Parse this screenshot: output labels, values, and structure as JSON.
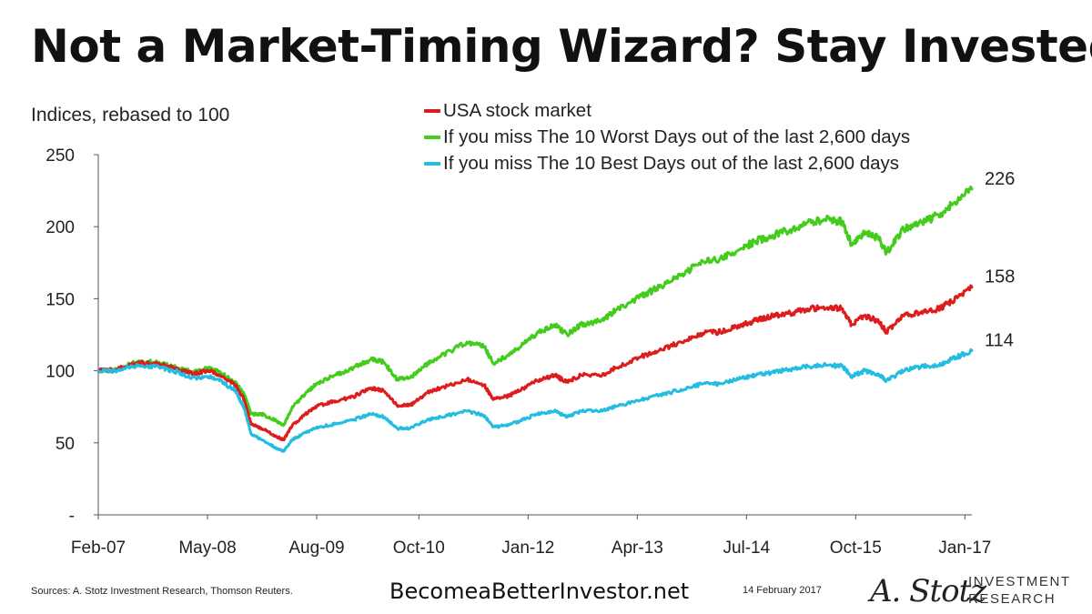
{
  "title": "Not a Market-Timing Wizard? Stay Invested",
  "footer": {
    "sources": "Sources: A. Stotz Investment Research, Thomson Reuters.",
    "website": "BecomeaBetterInvestor.net",
    "date": "14 February 2017",
    "logo": {
      "script": "A. Stotz",
      "line1": "INVESTMENT",
      "line2": "RESEARCH"
    }
  },
  "chart_data": {
    "type": "line",
    "ylabel": "Indices, rebased to 100",
    "ylim": [
      0,
      250
    ],
    "yticks": [
      0,
      50,
      100,
      150,
      200,
      250
    ],
    "ytick_labels": [
      "-",
      "50",
      "100",
      "150",
      "200",
      "250"
    ],
    "xlim": [
      2007.08,
      2017.08
    ],
    "xticks": [
      2007.08,
      2008.33,
      2009.58,
      2010.75,
      2012.0,
      2013.25,
      2014.5,
      2015.75,
      2017.0
    ],
    "xtick_labels": [
      "Feb-07",
      "May-08",
      "Aug-09",
      "Oct-10",
      "Jan-12",
      "Apr-13",
      "Jul-14",
      "Oct-15",
      "Jan-17"
    ],
    "grid": false,
    "legend_position": "top-center",
    "series": [
      {
        "name": "USA stock market",
        "color": "#dd1c1c",
        "end_label": "158",
        "points": [
          [
            2007.08,
            100
          ],
          [
            2007.3,
            101
          ],
          [
            2007.55,
            106
          ],
          [
            2007.8,
            104
          ],
          [
            2008.0,
            101
          ],
          [
            2008.15,
            98
          ],
          [
            2008.35,
            100
          ],
          [
            2008.5,
            96
          ],
          [
            2008.65,
            90
          ],
          [
            2008.75,
            80
          ],
          [
            2008.83,
            63
          ],
          [
            2008.95,
            60
          ],
          [
            2009.1,
            55
          ],
          [
            2009.2,
            52
          ],
          [
            2009.3,
            62
          ],
          [
            2009.45,
            70
          ],
          [
            2009.6,
            76
          ],
          [
            2009.8,
            79
          ],
          [
            2010.0,
            82
          ],
          [
            2010.2,
            88
          ],
          [
            2010.35,
            86
          ],
          [
            2010.5,
            76
          ],
          [
            2010.65,
            76
          ],
          [
            2010.85,
            85
          ],
          [
            2011.0,
            88
          ],
          [
            2011.3,
            94
          ],
          [
            2011.5,
            90
          ],
          [
            2011.6,
            80
          ],
          [
            2011.75,
            82
          ],
          [
            2011.9,
            86
          ],
          [
            2012.1,
            93
          ],
          [
            2012.3,
            97
          ],
          [
            2012.45,
            92
          ],
          [
            2012.6,
            97
          ],
          [
            2012.85,
            97
          ],
          [
            2013.0,
            102
          ],
          [
            2013.3,
            110
          ],
          [
            2013.5,
            114
          ],
          [
            2013.75,
            120
          ],
          [
            2014.0,
            126
          ],
          [
            2014.2,
            127
          ],
          [
            2014.45,
            132
          ],
          [
            2014.6,
            135
          ],
          [
            2014.8,
            138
          ],
          [
            2015.0,
            140
          ],
          [
            2015.2,
            143
          ],
          [
            2015.45,
            144
          ],
          [
            2015.6,
            143
          ],
          [
            2015.7,
            132
          ],
          [
            2015.85,
            138
          ],
          [
            2016.0,
            135
          ],
          [
            2016.1,
            127
          ],
          [
            2016.3,
            138
          ],
          [
            2016.5,
            141
          ],
          [
            2016.7,
            143
          ],
          [
            2016.85,
            148
          ],
          [
            2017.08,
            158
          ]
        ]
      },
      {
        "name": "If you miss The 10 Worst Days out of the last 2,600 days",
        "color": "#44cc1c",
        "end_label": "226",
        "points": [
          [
            2007.08,
            100
          ],
          [
            2007.3,
            101
          ],
          [
            2007.55,
            107
          ],
          [
            2007.8,
            105
          ],
          [
            2008.0,
            102
          ],
          [
            2008.15,
            99
          ],
          [
            2008.35,
            102
          ],
          [
            2008.5,
            98
          ],
          [
            2008.65,
            92
          ],
          [
            2008.75,
            84
          ],
          [
            2008.83,
            70
          ],
          [
            2008.95,
            70
          ],
          [
            2009.1,
            66
          ],
          [
            2009.2,
            62
          ],
          [
            2009.3,
            75
          ],
          [
            2009.45,
            84
          ],
          [
            2009.6,
            92
          ],
          [
            2009.8,
            97
          ],
          [
            2010.0,
            102
          ],
          [
            2010.2,
            108
          ],
          [
            2010.35,
            106
          ],
          [
            2010.5,
            94
          ],
          [
            2010.65,
            95
          ],
          [
            2010.85,
            105
          ],
          [
            2011.0,
            110
          ],
          [
            2011.3,
            120
          ],
          [
            2011.5,
            117
          ],
          [
            2011.6,
            105
          ],
          [
            2011.75,
            110
          ],
          [
            2011.9,
            116
          ],
          [
            2012.1,
            126
          ],
          [
            2012.3,
            132
          ],
          [
            2012.45,
            125
          ],
          [
            2012.6,
            132
          ],
          [
            2012.85,
            135
          ],
          [
            2013.0,
            142
          ],
          [
            2013.3,
            152
          ],
          [
            2013.5,
            158
          ],
          [
            2013.75,
            166
          ],
          [
            2014.0,
            176
          ],
          [
            2014.2,
            178
          ],
          [
            2014.45,
            185
          ],
          [
            2014.6,
            190
          ],
          [
            2014.8,
            194
          ],
          [
            2015.0,
            198
          ],
          [
            2015.2,
            203
          ],
          [
            2015.45,
            205
          ],
          [
            2015.6,
            203
          ],
          [
            2015.7,
            188
          ],
          [
            2015.85,
            196
          ],
          [
            2016.0,
            193
          ],
          [
            2016.1,
            182
          ],
          [
            2016.3,
            198
          ],
          [
            2016.5,
            203
          ],
          [
            2016.7,
            208
          ],
          [
            2016.85,
            215
          ],
          [
            2017.08,
            226
          ]
        ]
      },
      {
        "name": "If you miss The 10 Best Days out of the last 2,600 days",
        "color": "#22bde0",
        "end_label": "114",
        "points": [
          [
            2007.08,
            100
          ],
          [
            2007.3,
            100
          ],
          [
            2007.55,
            104
          ],
          [
            2007.8,
            102
          ],
          [
            2008.0,
            99
          ],
          [
            2008.15,
            95
          ],
          [
            2008.35,
            96
          ],
          [
            2008.5,
            92
          ],
          [
            2008.65,
            86
          ],
          [
            2008.75,
            74
          ],
          [
            2008.83,
            56
          ],
          [
            2008.95,
            52
          ],
          [
            2009.1,
            47
          ],
          [
            2009.2,
            44
          ],
          [
            2009.3,
            52
          ],
          [
            2009.45,
            57
          ],
          [
            2009.6,
            61
          ],
          [
            2009.8,
            63
          ],
          [
            2010.0,
            66
          ],
          [
            2010.2,
            70
          ],
          [
            2010.35,
            68
          ],
          [
            2010.5,
            60
          ],
          [
            2010.65,
            60
          ],
          [
            2010.85,
            66
          ],
          [
            2011.0,
            68
          ],
          [
            2011.3,
            72
          ],
          [
            2011.5,
            69
          ],
          [
            2011.6,
            61
          ],
          [
            2011.75,
            62
          ],
          [
            2011.9,
            65
          ],
          [
            2012.1,
            70
          ],
          [
            2012.3,
            72
          ],
          [
            2012.45,
            68
          ],
          [
            2012.6,
            72
          ],
          [
            2012.85,
            72
          ],
          [
            2013.0,
            75
          ],
          [
            2013.3,
            80
          ],
          [
            2013.5,
            83
          ],
          [
            2013.75,
            87
          ],
          [
            2014.0,
            91
          ],
          [
            2014.2,
            91
          ],
          [
            2014.45,
            95
          ],
          [
            2014.6,
            97
          ],
          [
            2014.8,
            99
          ],
          [
            2015.0,
            101
          ],
          [
            2015.2,
            103
          ],
          [
            2015.45,
            104
          ],
          [
            2015.6,
            103
          ],
          [
            2015.7,
            96
          ],
          [
            2015.85,
            100
          ],
          [
            2016.0,
            98
          ],
          [
            2016.1,
            93
          ],
          [
            2016.3,
            100
          ],
          [
            2016.5,
            103
          ],
          [
            2016.7,
            104
          ],
          [
            2016.85,
            108
          ],
          [
            2017.08,
            114
          ]
        ]
      }
    ]
  }
}
